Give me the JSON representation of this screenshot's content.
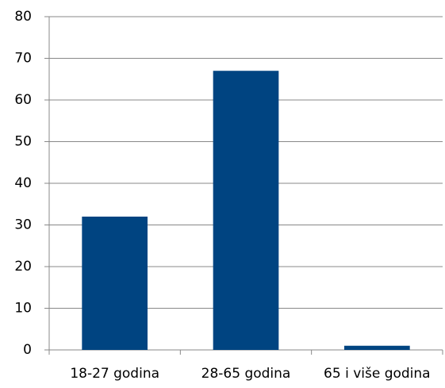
{
  "chart_data": {
    "type": "bar",
    "categories": [
      "18-27 godina",
      "28-65 godina",
      "65 i više godina"
    ],
    "values": [
      32,
      67,
      1
    ],
    "color": "#004481",
    "ylim": [
      0,
      80
    ],
    "yticks": [
      0,
      10,
      20,
      30,
      40,
      50,
      60,
      70,
      80
    ],
    "grid": true
  }
}
